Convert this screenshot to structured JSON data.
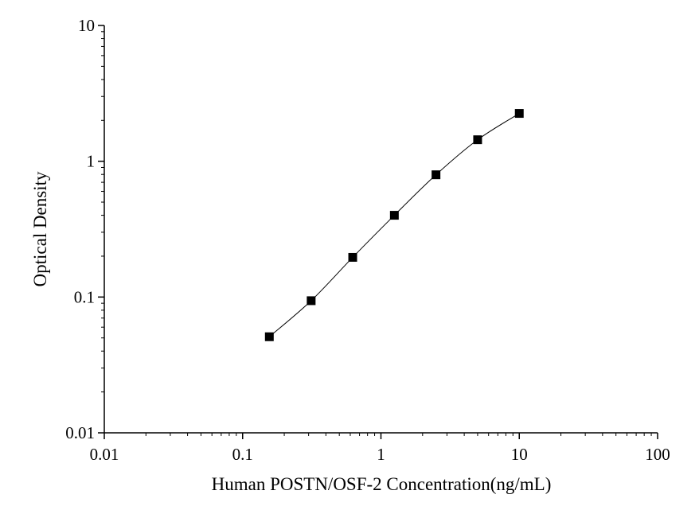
{
  "chart_data": {
    "type": "scatter",
    "title": "",
    "xlabel": "Human POSTN/OSF-2 Concentration(ng/mL)",
    "ylabel": "Optical Density",
    "xscale": "log",
    "yscale": "log",
    "xlim": [
      0.01,
      100
    ],
    "ylim": [
      0.01,
      10
    ],
    "x_ticks": [
      0.01,
      0.1,
      1,
      10,
      100
    ],
    "x_tick_labels": [
      "0.01",
      "0.1",
      "1",
      "10",
      "100"
    ],
    "y_ticks": [
      0.01,
      0.1,
      1,
      10
    ],
    "y_tick_labels": [
      "0.01",
      "0.1",
      "1",
      "10"
    ],
    "grid": false,
    "legend": "none",
    "marker": "square",
    "series": [
      {
        "x": [
          0.156,
          0.313,
          0.625,
          1.25,
          2.5,
          5,
          10
        ],
        "y": [
          0.051,
          0.094,
          0.196,
          0.4,
          0.795,
          1.44,
          2.25
        ]
      }
    ],
    "fit_curve": true,
    "colors": {
      "marker": "#000000",
      "curve": "#000000",
      "axis": "#000000"
    }
  }
}
